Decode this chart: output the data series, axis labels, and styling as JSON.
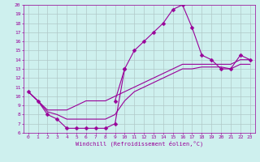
{
  "xlabel": "Windchill (Refroidissement éolien,°C)",
  "bg_color": "#cef0ee",
  "grid_color": "#b0c8c8",
  "line_color": "#990099",
  "xmin": -0.5,
  "xmax": 23.5,
  "ymin": 6,
  "ymax": 20,
  "xticks": [
    0,
    1,
    2,
    3,
    4,
    5,
    6,
    7,
    8,
    9,
    10,
    11,
    12,
    13,
    14,
    15,
    16,
    17,
    18,
    19,
    20,
    21,
    22,
    23
  ],
  "yticks": [
    6,
    7,
    8,
    9,
    10,
    11,
    12,
    13,
    14,
    15,
    16,
    17,
    18,
    19,
    20
  ],
  "series": [
    {
      "x": [
        0,
        1,
        2,
        3,
        4,
        5,
        6,
        7,
        8,
        9,
        10
      ],
      "y": [
        10.5,
        9.5,
        8.0,
        7.5,
        6.5,
        6.5,
        6.5,
        6.5,
        6.5,
        7.0,
        13.0
      ],
      "marker": "D",
      "markersize": 2.5
    },
    {
      "x": [
        9,
        10,
        11,
        12,
        13,
        14,
        15,
        16,
        17,
        18,
        19,
        20,
        21,
        22,
        23
      ],
      "y": [
        9.5,
        13.0,
        15.0,
        16.0,
        17.0,
        18.0,
        19.5,
        20.0,
        17.5,
        14.5,
        14.0,
        13.0,
        13.0,
        14.5,
        14.0
      ],
      "marker": "D",
      "markersize": 2.5
    },
    {
      "x": [
        0,
        1,
        2,
        3,
        4,
        5,
        6,
        7,
        8,
        9,
        10,
        11,
        12,
        13,
        14,
        15,
        16,
        17,
        18,
        19,
        20,
        21,
        22,
        23
      ],
      "y": [
        10.5,
        9.5,
        8.5,
        8.5,
        8.5,
        9.0,
        9.5,
        9.5,
        9.5,
        10.0,
        10.5,
        11.0,
        11.5,
        12.0,
        12.5,
        13.0,
        13.5,
        13.5,
        13.5,
        13.5,
        13.5,
        13.5,
        14.0,
        14.0
      ],
      "marker": null,
      "markersize": 0
    },
    {
      "x": [
        0,
        1,
        2,
        3,
        4,
        5,
        6,
        7,
        8,
        9,
        10,
        11,
        12,
        13,
        14,
        15,
        16,
        17,
        18,
        19,
        20,
        21,
        22,
        23
      ],
      "y": [
        10.5,
        9.5,
        8.3,
        8.0,
        7.5,
        7.5,
        7.5,
        7.5,
        7.5,
        8.0,
        9.5,
        10.5,
        11.0,
        11.5,
        12.0,
        12.5,
        13.0,
        13.0,
        13.2,
        13.2,
        13.2,
        13.0,
        13.5,
        13.5
      ],
      "marker": null,
      "markersize": 0
    }
  ]
}
